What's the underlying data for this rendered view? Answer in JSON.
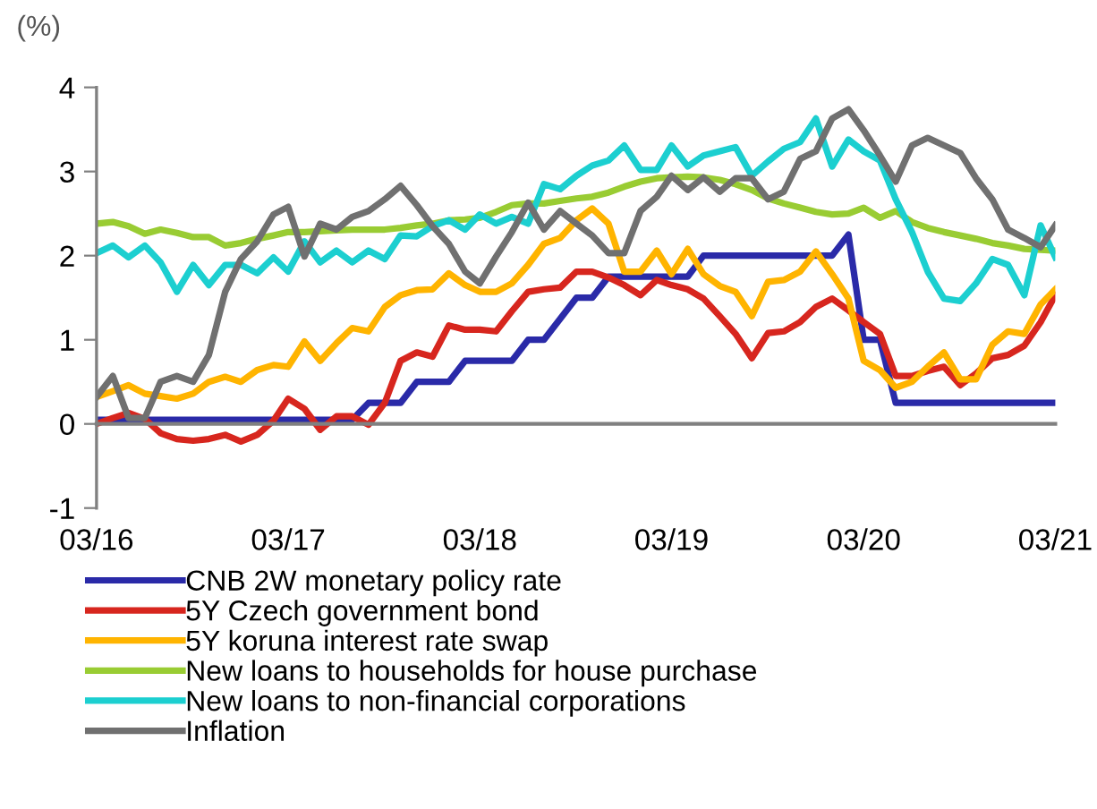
{
  "chart_data": {
    "type": "line",
    "ylabel": "(%)",
    "x": [
      "2016-03",
      "2016-04",
      "2016-05",
      "2016-06",
      "2016-07",
      "2016-08",
      "2016-09",
      "2016-10",
      "2016-11",
      "2016-12",
      "2017-01",
      "2017-02",
      "2017-03",
      "2017-04",
      "2017-05",
      "2017-06",
      "2017-07",
      "2017-08",
      "2017-09",
      "2017-10",
      "2017-11",
      "2017-12",
      "2018-01",
      "2018-02",
      "2018-03",
      "2018-04",
      "2018-05",
      "2018-06",
      "2018-07",
      "2018-08",
      "2018-09",
      "2018-10",
      "2018-11",
      "2018-12",
      "2019-01",
      "2019-02",
      "2019-03",
      "2019-04",
      "2019-05",
      "2019-06",
      "2019-07",
      "2019-08",
      "2019-09",
      "2019-10",
      "2019-11",
      "2019-12",
      "2020-01",
      "2020-02",
      "2020-03",
      "2020-04",
      "2020-05",
      "2020-06",
      "2020-07",
      "2020-08",
      "2020-09",
      "2020-10",
      "2020-11",
      "2020-12",
      "2021-01",
      "2021-02",
      "2021-03"
    ],
    "series": [
      {
        "name": "CNB 2W monetary policy rate",
        "color": "#2a2aa8",
        "values": [
          0.05,
          0.05,
          0.05,
          0.05,
          0.05,
          0.05,
          0.05,
          0.05,
          0.05,
          0.05,
          0.05,
          0.05,
          0.05,
          0.05,
          0.05,
          0.05,
          0.05,
          0.25,
          0.25,
          0.25,
          0.5,
          0.5,
          0.5,
          0.75,
          0.75,
          0.75,
          0.75,
          1.0,
          1.0,
          1.25,
          1.5,
          1.5,
          1.75,
          1.75,
          1.75,
          1.75,
          1.75,
          1.75,
          2.0,
          2.0,
          2.0,
          2.0,
          2.0,
          2.0,
          2.0,
          2.0,
          2.0,
          2.25,
          1.0,
          1.0,
          0.25,
          0.25,
          0.25,
          0.25,
          0.25,
          0.25,
          0.25,
          0.25,
          0.25,
          0.25,
          0.25
        ]
      },
      {
        "name": "5Y Czech government bond",
        "color": "#d7261e",
        "values": [
          0.0,
          0.07,
          0.13,
          0.06,
          -0.11,
          -0.18,
          -0.2,
          -0.18,
          -0.13,
          -0.21,
          -0.13,
          0.04,
          0.3,
          0.18,
          -0.07,
          0.09,
          0.09,
          -0.01,
          0.25,
          0.75,
          0.85,
          0.8,
          1.17,
          1.12,
          1.12,
          1.1,
          1.34,
          1.57,
          1.6,
          1.62,
          1.81,
          1.81,
          1.74,
          1.65,
          1.53,
          1.71,
          1.65,
          1.6,
          1.49,
          1.28,
          1.07,
          0.78,
          1.08,
          1.1,
          1.21,
          1.39,
          1.49,
          1.35,
          1.21,
          1.07,
          0.57,
          0.57,
          0.63,
          0.68,
          0.46,
          0.6,
          0.78,
          0.82,
          0.93,
          1.21,
          1.53
        ]
      },
      {
        "name": "5Y koruna interest rate swap",
        "color": "#ffb400",
        "values": [
          0.32,
          0.39,
          0.46,
          0.36,
          0.33,
          0.3,
          0.36,
          0.5,
          0.56,
          0.5,
          0.64,
          0.7,
          0.68,
          0.98,
          0.75,
          0.96,
          1.14,
          1.1,
          1.39,
          1.53,
          1.59,
          1.6,
          1.79,
          1.65,
          1.57,
          1.57,
          1.67,
          1.89,
          2.14,
          2.21,
          2.42,
          2.56,
          2.38,
          1.81,
          1.81,
          2.06,
          1.78,
          2.08,
          1.78,
          1.64,
          1.57,
          1.28,
          1.69,
          1.71,
          1.81,
          2.05,
          1.78,
          1.49,
          0.75,
          0.64,
          0.43,
          0.5,
          0.68,
          0.85,
          0.53,
          0.53,
          0.94,
          1.1,
          1.07,
          1.42,
          1.6
        ]
      },
      {
        "name": "New loans to households for house purchase",
        "color": "#99cc33",
        "values": [
          2.38,
          2.4,
          2.35,
          2.26,
          2.31,
          2.27,
          2.22,
          2.22,
          2.12,
          2.15,
          2.2,
          2.24,
          2.28,
          2.28,
          2.29,
          2.3,
          2.31,
          2.31,
          2.31,
          2.33,
          2.36,
          2.38,
          2.42,
          2.43,
          2.45,
          2.52,
          2.6,
          2.62,
          2.62,
          2.65,
          2.68,
          2.7,
          2.75,
          2.82,
          2.88,
          2.92,
          2.93,
          2.94,
          2.93,
          2.9,
          2.85,
          2.78,
          2.68,
          2.62,
          2.57,
          2.52,
          2.49,
          2.5,
          2.57,
          2.45,
          2.53,
          2.4,
          2.33,
          2.28,
          2.24,
          2.2,
          2.15,
          2.12,
          2.08,
          2.07,
          2.06
        ]
      },
      {
        "name": "New loans to non-financial corporations",
        "color": "#1ccfd0",
        "values": [
          2.03,
          2.12,
          1.98,
          2.12,
          1.92,
          1.57,
          1.89,
          1.65,
          1.89,
          1.89,
          1.79,
          1.98,
          1.81,
          2.17,
          1.92,
          2.06,
          1.92,
          2.06,
          1.96,
          2.24,
          2.23,
          2.35,
          2.42,
          2.31,
          2.49,
          2.38,
          2.46,
          2.38,
          2.85,
          2.79,
          2.95,
          3.07,
          3.13,
          3.31,
          3.02,
          3.02,
          3.31,
          3.06,
          3.19,
          3.24,
          3.29,
          2.95,
          3.12,
          3.27,
          3.35,
          3.63,
          3.06,
          3.38,
          3.24,
          3.13,
          2.67,
          2.28,
          1.81,
          1.49,
          1.46,
          1.67,
          1.96,
          1.89,
          1.53,
          2.36,
          1.98
        ]
      },
      {
        "name": "Inflation",
        "color": "#707070",
        "values": [
          0.32,
          0.57,
          0.07,
          0.07,
          0.5,
          0.57,
          0.5,
          0.82,
          1.57,
          1.96,
          2.17,
          2.49,
          2.58,
          1.99,
          2.38,
          2.31,
          2.46,
          2.53,
          2.67,
          2.83,
          2.6,
          2.35,
          2.14,
          1.81,
          1.67,
          1.99,
          2.28,
          2.63,
          2.31,
          2.53,
          2.38,
          2.24,
          2.03,
          2.03,
          2.53,
          2.7,
          2.95,
          2.78,
          2.93,
          2.76,
          2.92,
          2.92,
          2.67,
          2.76,
          3.15,
          3.24,
          3.63,
          3.74,
          3.49,
          3.19,
          2.88,
          3.31,
          3.4,
          3.31,
          3.22,
          2.92,
          2.67,
          2.31,
          2.21,
          2.1,
          2.36
        ]
      }
    ],
    "xlim": [
      "2016-03",
      "2021-03"
    ],
    "xticks": [
      {
        "value": "2016-03",
        "label": "03/16"
      },
      {
        "value": "2017-03",
        "label": "03/17"
      },
      {
        "value": "2018-03",
        "label": "03/18"
      },
      {
        "value": "2019-03",
        "label": "03/19"
      },
      {
        "value": "2020-03",
        "label": "03/20"
      },
      {
        "value": "2021-03",
        "label": "03/21"
      }
    ],
    "ylim": [
      -1,
      4
    ],
    "yticks": [
      {
        "value": -1,
        "label": "-1"
      },
      0,
      1,
      2,
      3,
      4
    ],
    "legend": "bottom",
    "marker": "none",
    "line_style": "solid"
  }
}
